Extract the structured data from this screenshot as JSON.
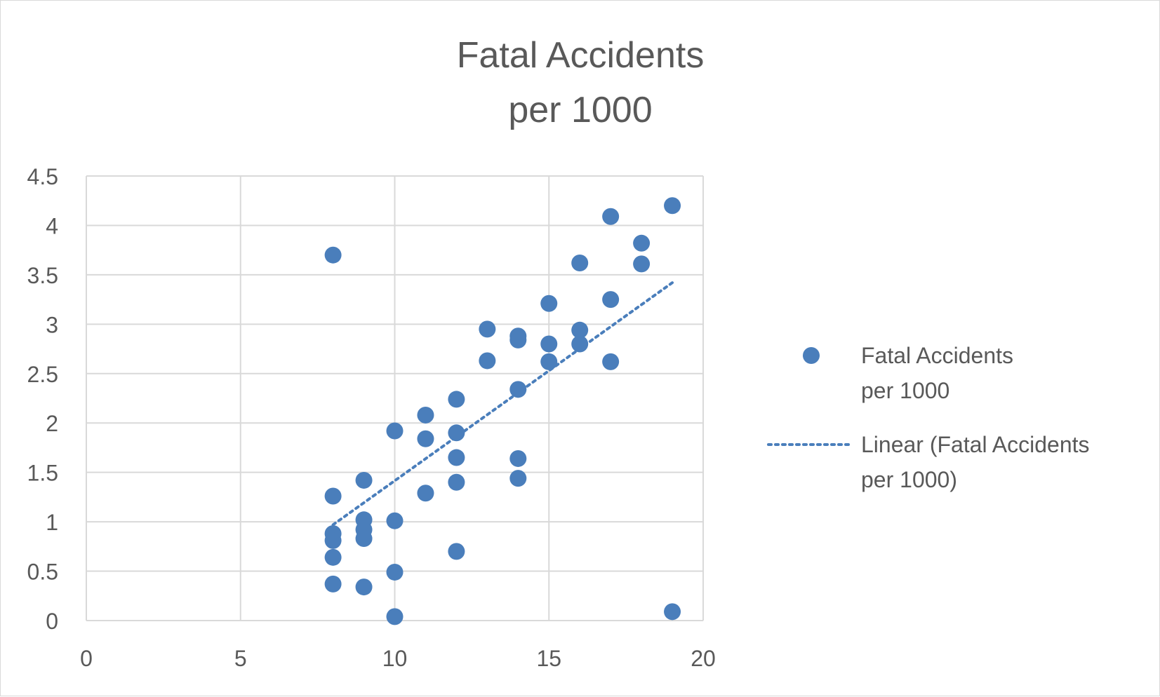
{
  "chart_data": {
    "type": "scatter",
    "title_lines": [
      "Fatal Accidents",
      "per 1000"
    ],
    "xlim": [
      0,
      20
    ],
    "ylim": [
      0,
      4.5
    ],
    "x_ticks": [
      "0",
      "5",
      "10",
      "15",
      "20"
    ],
    "y_ticks": [
      "0",
      "0.5",
      "1",
      "1.5",
      "2",
      "2.5",
      "3",
      "3.5",
      "4",
      "4.5"
    ],
    "grid": true,
    "legend_position": "right",
    "colors": {
      "points": "#4a7ebb",
      "trendline": "#4a7ebb",
      "grid": "#d9d9d9",
      "text": "#595959"
    },
    "series": [
      {
        "name_lines": [
          "Fatal Accidents",
          "per 1000"
        ],
        "points": [
          [
            8,
            3.7
          ],
          [
            8,
            1.26
          ],
          [
            8,
            0.88
          ],
          [
            8,
            0.81
          ],
          [
            8,
            0.64
          ],
          [
            8,
            0.37
          ],
          [
            9,
            1.42
          ],
          [
            9,
            1.02
          ],
          [
            9,
            0.92
          ],
          [
            9,
            0.83
          ],
          [
            9,
            0.34
          ],
          [
            10,
            1.92
          ],
          [
            10,
            1.01
          ],
          [
            10,
            0.49
          ],
          [
            10,
            0.04
          ],
          [
            11,
            2.08
          ],
          [
            11,
            1.84
          ],
          [
            11,
            1.29
          ],
          [
            12,
            2.24
          ],
          [
            12,
            1.9
          ],
          [
            12,
            1.65
          ],
          [
            12,
            1.4
          ],
          [
            12,
            0.7
          ],
          [
            13,
            2.95
          ],
          [
            13,
            2.63
          ],
          [
            14,
            2.88
          ],
          [
            14,
            2.84
          ],
          [
            14,
            2.34
          ],
          [
            14,
            1.64
          ],
          [
            14,
            1.44
          ],
          [
            15,
            3.21
          ],
          [
            15,
            2.8
          ],
          [
            15,
            2.62
          ],
          [
            16,
            3.62
          ],
          [
            16,
            2.94
          ],
          [
            16,
            2.8
          ],
          [
            17,
            4.09
          ],
          [
            17,
            3.25
          ],
          [
            17,
            2.62
          ],
          [
            18,
            3.82
          ],
          [
            18,
            3.61
          ],
          [
            19,
            4.2
          ],
          [
            19,
            0.09
          ]
        ]
      }
    ],
    "trendline": {
      "name_lines": [
        "Linear (Fatal Accidents",
        "per 1000)"
      ],
      "type": "linear",
      "x_range": [
        8,
        19
      ],
      "y_range": [
        0.97,
        3.42
      ]
    }
  }
}
